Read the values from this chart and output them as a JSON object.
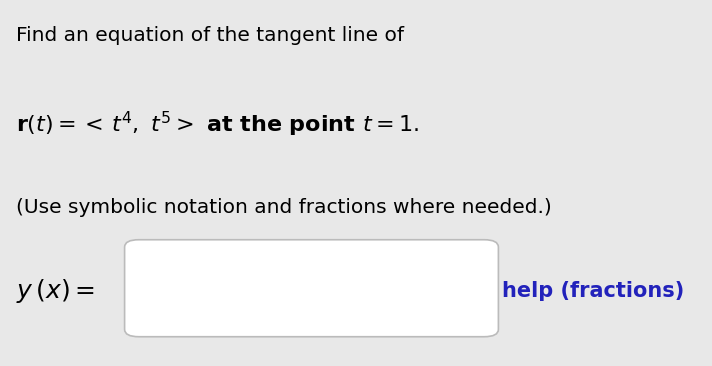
{
  "background_color": "#e8e8e8",
  "line1": "Find an equation of the tangent line of",
  "line3": "(Use symbolic notation and fractions where needed.)",
  "help_text": "help (fractions)",
  "help_color": "#2222bb",
  "font_size_line1": 14.5,
  "font_size_line2": 16,
  "font_size_line3": 14.5,
  "font_size_yx": 18,
  "font_size_help": 15
}
